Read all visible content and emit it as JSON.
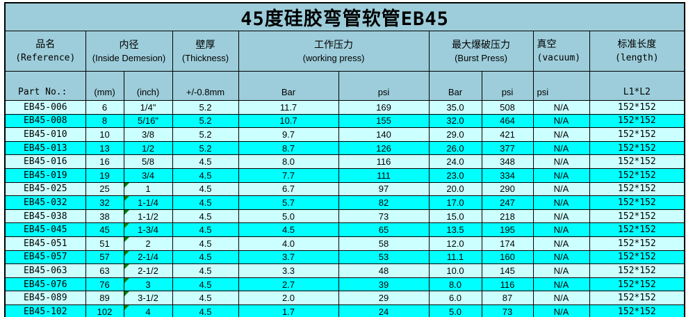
{
  "title": "45度硅胶弯管软管EB45",
  "colors": {
    "header_bg": "#9DCDDA",
    "row_light": "#CCFFFF",
    "row_cyan": "#00FFFF",
    "border": "#000000",
    "flag_green": "#008000"
  },
  "table": {
    "header": {
      "product": {
        "zh": "品名",
        "en": "(Reference)"
      },
      "inside": {
        "zh": "内径",
        "en": "(Inside Demesion)"
      },
      "thickness": {
        "zh": "壁厚",
        "en": "(Thickness)"
      },
      "working": {
        "zh": "工作压力",
        "en": "(working press)"
      },
      "burst": {
        "zh": "最大爆破压力",
        "en": "(Burst Press)"
      },
      "vacuum": {
        "zh": "真空",
        "en": "(vacuum)"
      },
      "length": {
        "zh": "标准长度",
        "en": "(length)"
      }
    },
    "subheader": {
      "part_no": "Part No.:",
      "mm": "(mm)",
      "inch": "(inch)",
      "thickness": "+/-0.8mm",
      "working_bar": "Bar",
      "working_psi": "psi",
      "burst_bar": "Bar",
      "burst_psi": "psi",
      "vacuum_psi": "psi",
      "length": "L1*L2"
    },
    "rows": [
      {
        "cells": [
          "EB45-006",
          "6",
          "1/4\"",
          "5.2",
          "11.7",
          "169",
          "35.0",
          "508",
          "N/A",
          "152*152"
        ],
        "flag": false
      },
      {
        "cells": [
          "EB45-008",
          "8",
          "5/16\"",
          "5.2",
          "10.7",
          "155",
          "32.0",
          "464",
          "N/A",
          "152*152"
        ],
        "flag": false
      },
      {
        "cells": [
          "EB45-010",
          "10",
          "3/8",
          "5.2",
          "9.7",
          "140",
          "29.0",
          "421",
          "N/A",
          "152*152"
        ],
        "flag": false
      },
      {
        "cells": [
          "EB45-013",
          "13",
          "1/2",
          "5.2",
          "8.7",
          "126",
          "26.0",
          "377",
          "N/A",
          "152*152"
        ],
        "flag": false
      },
      {
        "cells": [
          "EB45-016",
          "16",
          "5/8",
          "4.5",
          "8.0",
          "116",
          "24.0",
          "348",
          "N/A",
          "152*152"
        ],
        "flag": false
      },
      {
        "cells": [
          "EB45-019",
          "19",
          "3/4",
          "4.5",
          "7.7",
          "111",
          "23.0",
          "334",
          "N/A",
          "152*152"
        ],
        "flag": false
      },
      {
        "cells": [
          "EB45-025",
          "25",
          "1",
          "4.5",
          "6.7",
          "97",
          "20.0",
          "290",
          "N/A",
          "152*152"
        ],
        "flag": true
      },
      {
        "cells": [
          "EB45-032",
          "32",
          "1-1/4",
          "4.5",
          "5.7",
          "82",
          "17.0",
          "247",
          "N/A",
          "152*152"
        ],
        "flag": true
      },
      {
        "cells": [
          "EB45-038",
          "38",
          "1-1/2",
          "4.5",
          "5.0",
          "73",
          "15.0",
          "218",
          "N/A",
          "152*152"
        ],
        "flag": true
      },
      {
        "cells": [
          "EB45-045",
          "45",
          "1-3/4",
          "4.5",
          "4.5",
          "65",
          "13.5",
          "195",
          "N/A",
          "152*152"
        ],
        "flag": true
      },
      {
        "cells": [
          "EB45-051",
          "51",
          "2",
          "4.5",
          "4.0",
          "58",
          "12.0",
          "174",
          "N/A",
          "152*152"
        ],
        "flag": true
      },
      {
        "cells": [
          "EB45-057",
          "57",
          "2-1/4",
          "4.5",
          "3.7",
          "53",
          "11.1",
          "160",
          "N/A",
          "152*152"
        ],
        "flag": true
      },
      {
        "cells": [
          "EB45-063",
          "63",
          "2-1/2",
          "4.5",
          "3.3",
          "48",
          "10.0",
          "145",
          "N/A",
          "152*152"
        ],
        "flag": true
      },
      {
        "cells": [
          "EB45-076",
          "76",
          "3",
          "4.5",
          "2.7",
          "39",
          "8.0",
          "116",
          "N/A",
          "152*152"
        ],
        "flag": true
      },
      {
        "cells": [
          "EB45-089",
          "89",
          "3-1/2",
          "4.5",
          "2.0",
          "29",
          "6.0",
          "87",
          "N/A",
          "152*152"
        ],
        "flag": true
      },
      {
        "cells": [
          "EB45-102",
          "102",
          "4",
          "4.5",
          "1.7",
          "24",
          "5.0",
          "73",
          "N/A",
          "152*152"
        ],
        "flag": true
      }
    ]
  }
}
